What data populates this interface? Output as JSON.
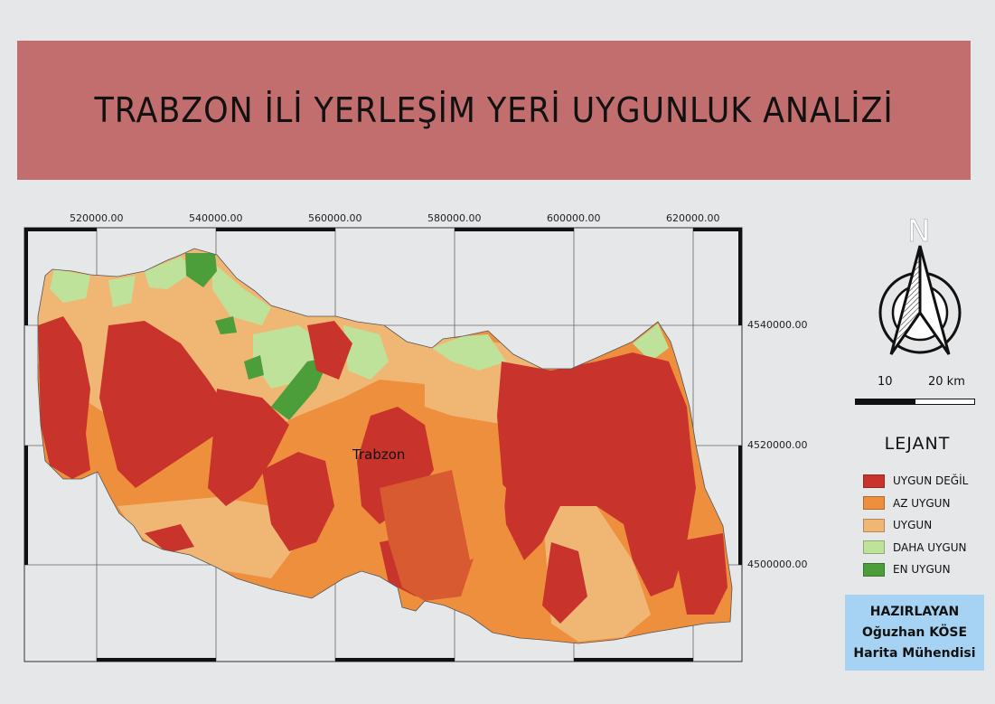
{
  "title": "TRABZON İLİ YERLEŞİM YERİ UYGUNLUK ANALİZİ",
  "map": {
    "place_label": "Trabzon",
    "x_ticks": [
      "520000.00",
      "540000.00",
      "560000.00",
      "580000.00",
      "600000.00",
      "620000.00"
    ],
    "y_ticks": [
      "4540000.00",
      "4520000.00",
      "4500000.00"
    ]
  },
  "north_arrow": {
    "letter": "N"
  },
  "scale_bar": {
    "labels": [
      "10",
      "20 km"
    ]
  },
  "legend": {
    "title": "LEJANT",
    "items": [
      {
        "label": "UYGUN DEĞİL",
        "color": "#c8342c"
      },
      {
        "label": "AZ UYGUN",
        "color": "#ee8f3d"
      },
      {
        "label": "UYGUN",
        "color": "#f0b774"
      },
      {
        "label": "DAHA UYGUN",
        "color": "#bfe29a"
      },
      {
        "label": "EN UYGUN",
        "color": "#4c9e3a"
      }
    ]
  },
  "author": {
    "heading": "HAZIRLAYAN",
    "name": "Oğuzhan KÖSE",
    "role": "Harita Mühendisi"
  }
}
